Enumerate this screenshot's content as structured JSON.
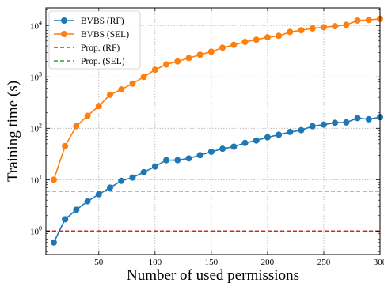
{
  "chart_data": {
    "type": "line",
    "title": "",
    "xlabel": "Number of used permissions",
    "ylabel": "Training time (s)",
    "xlim": [
      3,
      300
    ],
    "ylim": [
      0.35,
      22000
    ],
    "yscale": "log",
    "grid": true,
    "legend_position": "top-left",
    "x_ticks": [
      50,
      100,
      150,
      200,
      250,
      300
    ],
    "x_tick_labels": [
      "50",
      "100",
      "150",
      "200",
      "250",
      "300"
    ],
    "y_ticks": [
      1,
      10,
      100,
      1000,
      10000
    ],
    "y_tick_labels": [
      {
        "base": "10",
        "exp": "0"
      },
      {
        "base": "10",
        "exp": "1"
      },
      {
        "base": "10",
        "exp": "2"
      },
      {
        "base": "10",
        "exp": "3"
      },
      {
        "base": "10",
        "exp": "4"
      }
    ],
    "series": [
      {
        "name": "BVBS (RF)",
        "color": "#1f77b4",
        "style": "line-marker",
        "x": [
          10,
          20,
          30,
          40,
          50,
          60,
          70,
          80,
          90,
          100,
          110,
          120,
          130,
          140,
          150,
          160,
          170,
          180,
          190,
          200,
          210,
          220,
          230,
          240,
          250,
          260,
          270,
          280,
          290,
          300
        ],
        "y": [
          0.6,
          1.7,
          2.6,
          3.8,
          5.2,
          7.0,
          9.5,
          11,
          14,
          18,
          24,
          24,
          26,
          30,
          35,
          40,
          44,
          52,
          58,
          67,
          75,
          85,
          92,
          110,
          118,
          128,
          130,
          158,
          150,
          165
        ]
      },
      {
        "name": "BVBS (SEL)",
        "color": "#ff7f0e",
        "style": "line-marker",
        "x": [
          10,
          20,
          30,
          40,
          50,
          60,
          70,
          80,
          90,
          100,
          110,
          120,
          130,
          140,
          150,
          160,
          170,
          180,
          190,
          200,
          210,
          220,
          230,
          240,
          250,
          260,
          270,
          280,
          290,
          300
        ],
        "y": [
          10,
          45,
          110,
          175,
          270,
          450,
          570,
          740,
          1000,
          1380,
          1750,
          2000,
          2330,
          2700,
          3100,
          3700,
          4200,
          4800,
          5300,
          5900,
          6300,
          7500,
          8100,
          8800,
          9300,
          9700,
          10300,
          12500,
          12800,
          13500
        ]
      },
      {
        "name": "Prop. (RF)",
        "color": "#d62728",
        "style": "dashed",
        "x": [
          3,
          300
        ],
        "y": [
          1.0,
          1.0
        ]
      },
      {
        "name": "Prop. (SEL)",
        "color": "#2ca02c",
        "style": "dashed",
        "x": [
          3,
          300
        ],
        "y": [
          6.0,
          6.0
        ]
      }
    ]
  }
}
